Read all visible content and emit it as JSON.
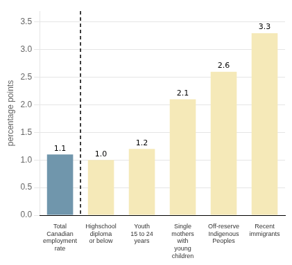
{
  "chart_data": {
    "type": "bar",
    "categories": [
      "Total\nCanadian\nemployment\nrate",
      "Highschool\ndiploma\nor below",
      "Youth\n15 to 24\nyears",
      "Single\nmothers\nwith\nyoung\nchildren",
      "Off-reserve\nIndigenous\nPeoples",
      "Recent\nimmigrants"
    ],
    "values": [
      1.1,
      1.0,
      1.2,
      2.1,
      2.6,
      3.3
    ],
    "value_labels": [
      "1.1",
      "1.0",
      "1.2",
      "2.1",
      "2.6",
      "3.3"
    ],
    "colors": [
      "#7096ac",
      "#f5e9b8",
      "#f5e9b8",
      "#f5e9b8",
      "#f5e9b8",
      "#f5e9b8"
    ],
    "ylabel": "percentage points",
    "ylim": [
      0,
      3.7
    ],
    "yticks": [
      {
        "value": 0,
        "label": "0.0"
      },
      0.5,
      {
        "value": 1,
        "label": "1.0"
      },
      1.5,
      {
        "value": 2,
        "label": "2.0"
      },
      2.5,
      {
        "value": 3,
        "label": "3.0"
      },
      3.5
    ],
    "grid": true,
    "data_labels": true
  }
}
